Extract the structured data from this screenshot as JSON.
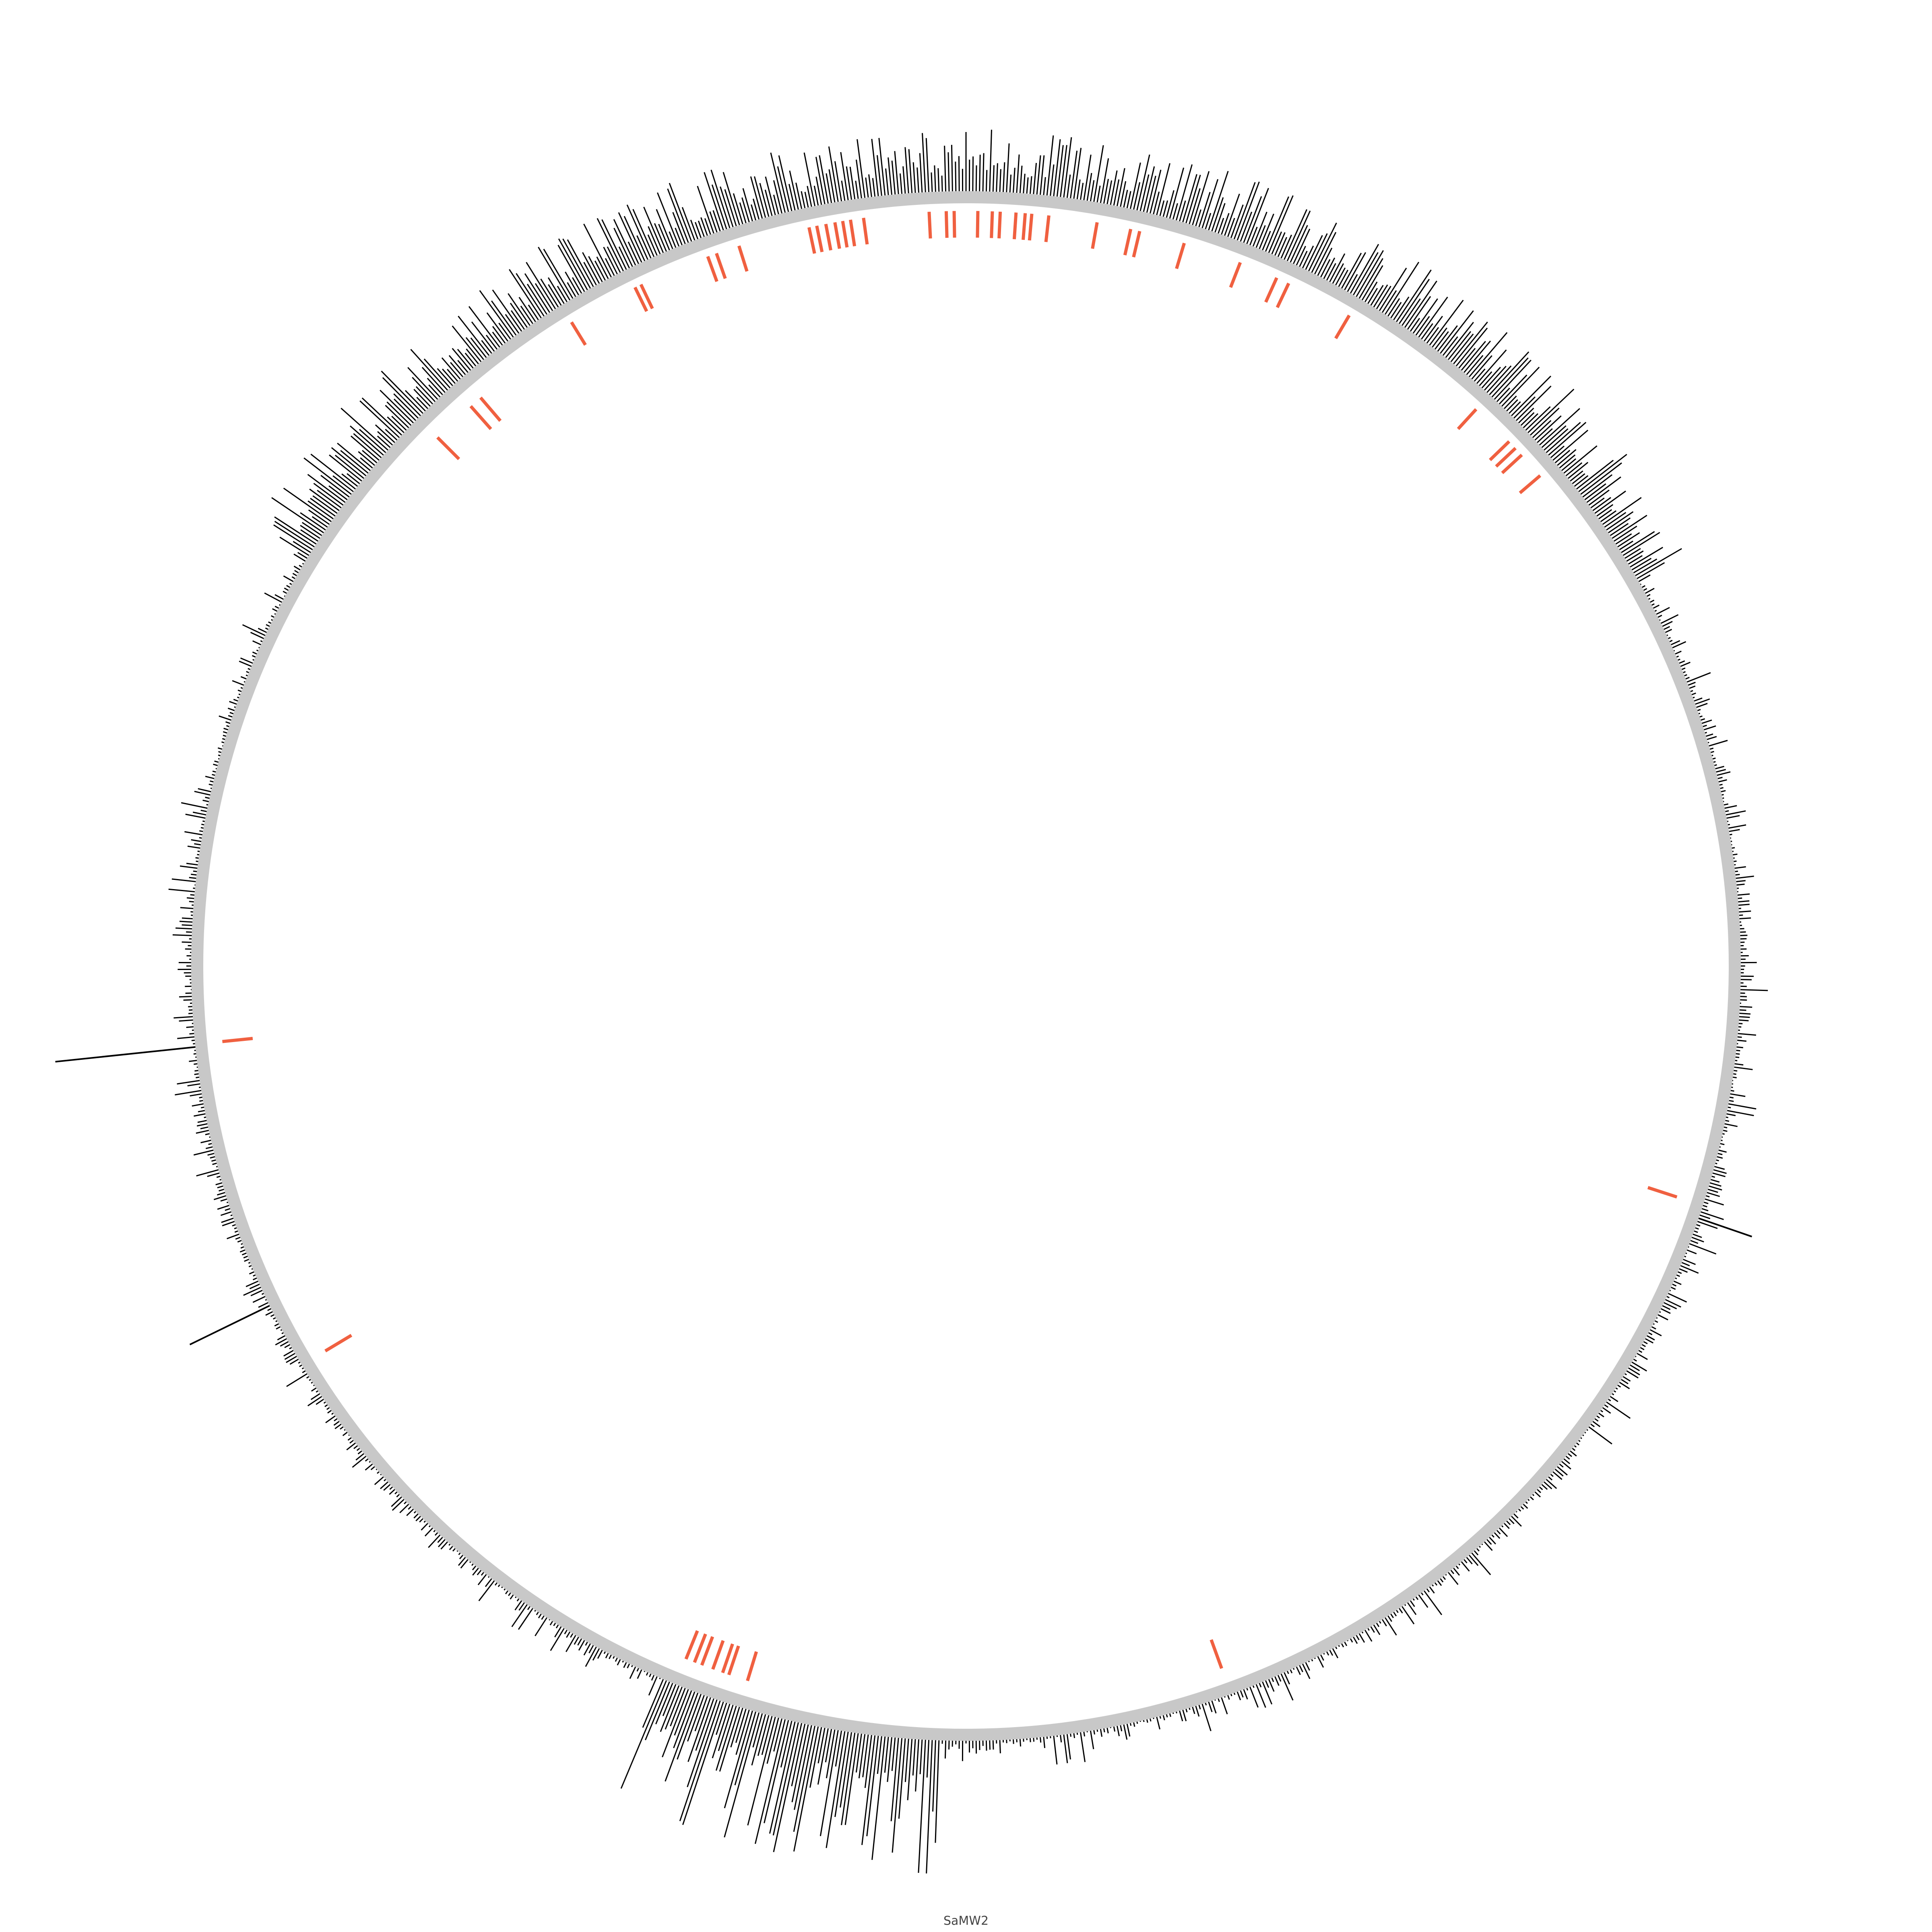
{
  "chart_data": {
    "type": "circular-genome",
    "genome_label": "SaMW2",
    "colors": {
      "backbone": "#c8c8c8",
      "coverage": "#000000",
      "features": "#f06040"
    },
    "coverage_regions": [
      {
        "start_deg": -58,
        "end_deg": 60,
        "level": 0.45
      },
      {
        "start_deg": 182,
        "end_deg": 203,
        "level": 0.95
      }
    ],
    "coverage_spikes": [
      {
        "angle_deg": 264,
        "level": 1.0
      },
      {
        "angle_deg": 244,
        "level": 0.63
      },
      {
        "angle_deg": 109,
        "level": 0.4
      }
    ],
    "features": [
      {
        "angle_deg": -45,
        "inner": 0.94,
        "outer": 0.98
      },
      {
        "angle_deg": -41.5,
        "inner": 0.94,
        "outer": 0.98
      },
      {
        "angle_deg": -40.5,
        "inner": 0.94,
        "outer": 0.98
      },
      {
        "angle_deg": -31.5,
        "inner": 0.955,
        "outer": 0.99
      },
      {
        "angle_deg": -26,
        "inner": 0.955,
        "outer": 0.99
      },
      {
        "angle_deg": -25.5,
        "inner": 0.955,
        "outer": 0.99
      },
      {
        "angle_deg": -20,
        "inner": 0.955,
        "outer": 0.99
      },
      {
        "angle_deg": -19.3,
        "inner": 0.955,
        "outer": 0.99
      },
      {
        "angle_deg": -17.5,
        "inner": 0.955,
        "outer": 0.99
      },
      {
        "angle_deg": -12,
        "inner": 0.955,
        "outer": 0.99
      },
      {
        "angle_deg": -11.4,
        "inner": 0.955,
        "outer": 0.99
      },
      {
        "angle_deg": -10.7,
        "inner": 0.955,
        "outer": 0.99
      },
      {
        "angle_deg": -10,
        "inner": 0.955,
        "outer": 0.99
      },
      {
        "angle_deg": -9.4,
        "inner": 0.955,
        "outer": 0.99
      },
      {
        "angle_deg": -8.8,
        "inner": 0.955,
        "outer": 0.99
      },
      {
        "angle_deg": -7.8,
        "inner": 0.955,
        "outer": 0.99
      },
      {
        "angle_deg": -2.8,
        "inner": 0.955,
        "outer": 0.99
      },
      {
        "angle_deg": -1.5,
        "inner": 0.955,
        "outer": 0.99
      },
      {
        "angle_deg": -0.9,
        "inner": 0.955,
        "outer": 0.99
      },
      {
        "angle_deg": 0.9,
        "inner": 0.955,
        "outer": 0.99
      },
      {
        "angle_deg": 2,
        "inner": 0.955,
        "outer": 0.99
      },
      {
        "angle_deg": 2.6,
        "inner": 0.955,
        "outer": 0.99
      },
      {
        "angle_deg": 3.8,
        "inner": 0.955,
        "outer": 0.99
      },
      {
        "angle_deg": 4.5,
        "inner": 0.955,
        "outer": 0.99
      },
      {
        "angle_deg": 5,
        "inner": 0.955,
        "outer": 0.99
      },
      {
        "angle_deg": 6.3,
        "inner": 0.955,
        "outer": 0.99
      },
      {
        "angle_deg": 10,
        "inner": 0.955,
        "outer": 0.99
      },
      {
        "angle_deg": 12.6,
        "inner": 0.955,
        "outer": 0.99
      },
      {
        "angle_deg": 13.3,
        "inner": 0.955,
        "outer": 0.99
      },
      {
        "angle_deg": 16.8,
        "inner": 0.955,
        "outer": 0.99
      },
      {
        "angle_deg": 21.3,
        "inner": 0.955,
        "outer": 0.99
      },
      {
        "angle_deg": 24.3,
        "inner": 0.955,
        "outer": 0.99
      },
      {
        "angle_deg": 25.3,
        "inner": 0.955,
        "outer": 0.99
      },
      {
        "angle_deg": 30.5,
        "inner": 0.955,
        "outer": 0.99
      },
      {
        "angle_deg": 42.5,
        "inner": 0.955,
        "outer": 0.99
      },
      {
        "angle_deg": 46,
        "inner": 0.955,
        "outer": 0.99
      },
      {
        "angle_deg": 46.7,
        "inner": 0.955,
        "outer": 0.99
      },
      {
        "angle_deg": 47.4,
        "inner": 0.955,
        "outer": 0.99
      },
      {
        "angle_deg": 49.5,
        "inner": 0.955,
        "outer": 0.99
      },
      {
        "angle_deg": 108,
        "inner": 0.94,
        "outer": 0.98
      },
      {
        "angle_deg": 160,
        "inner": 0.94,
        "outer": 0.98
      },
      {
        "angle_deg": 197,
        "inner": 0.94,
        "outer": 0.98
      },
      {
        "angle_deg": 198.5,
        "inner": 0.94,
        "outer": 0.98
      },
      {
        "angle_deg": 199,
        "inner": 0.94,
        "outer": 0.98
      },
      {
        "angle_deg": 199.8,
        "inner": 0.94,
        "outer": 0.98
      },
      {
        "angle_deg": 200.7,
        "inner": 0.94,
        "outer": 0.98
      },
      {
        "angle_deg": 201.3,
        "inner": 0.94,
        "outer": 0.98
      },
      {
        "angle_deg": 202,
        "inner": 0.94,
        "outer": 0.98
      },
      {
        "angle_deg": 239,
        "inner": 0.94,
        "outer": 0.98
      },
      {
        "angle_deg": 264.2,
        "inner": 0.94,
        "outer": 0.98
      }
    ]
  }
}
